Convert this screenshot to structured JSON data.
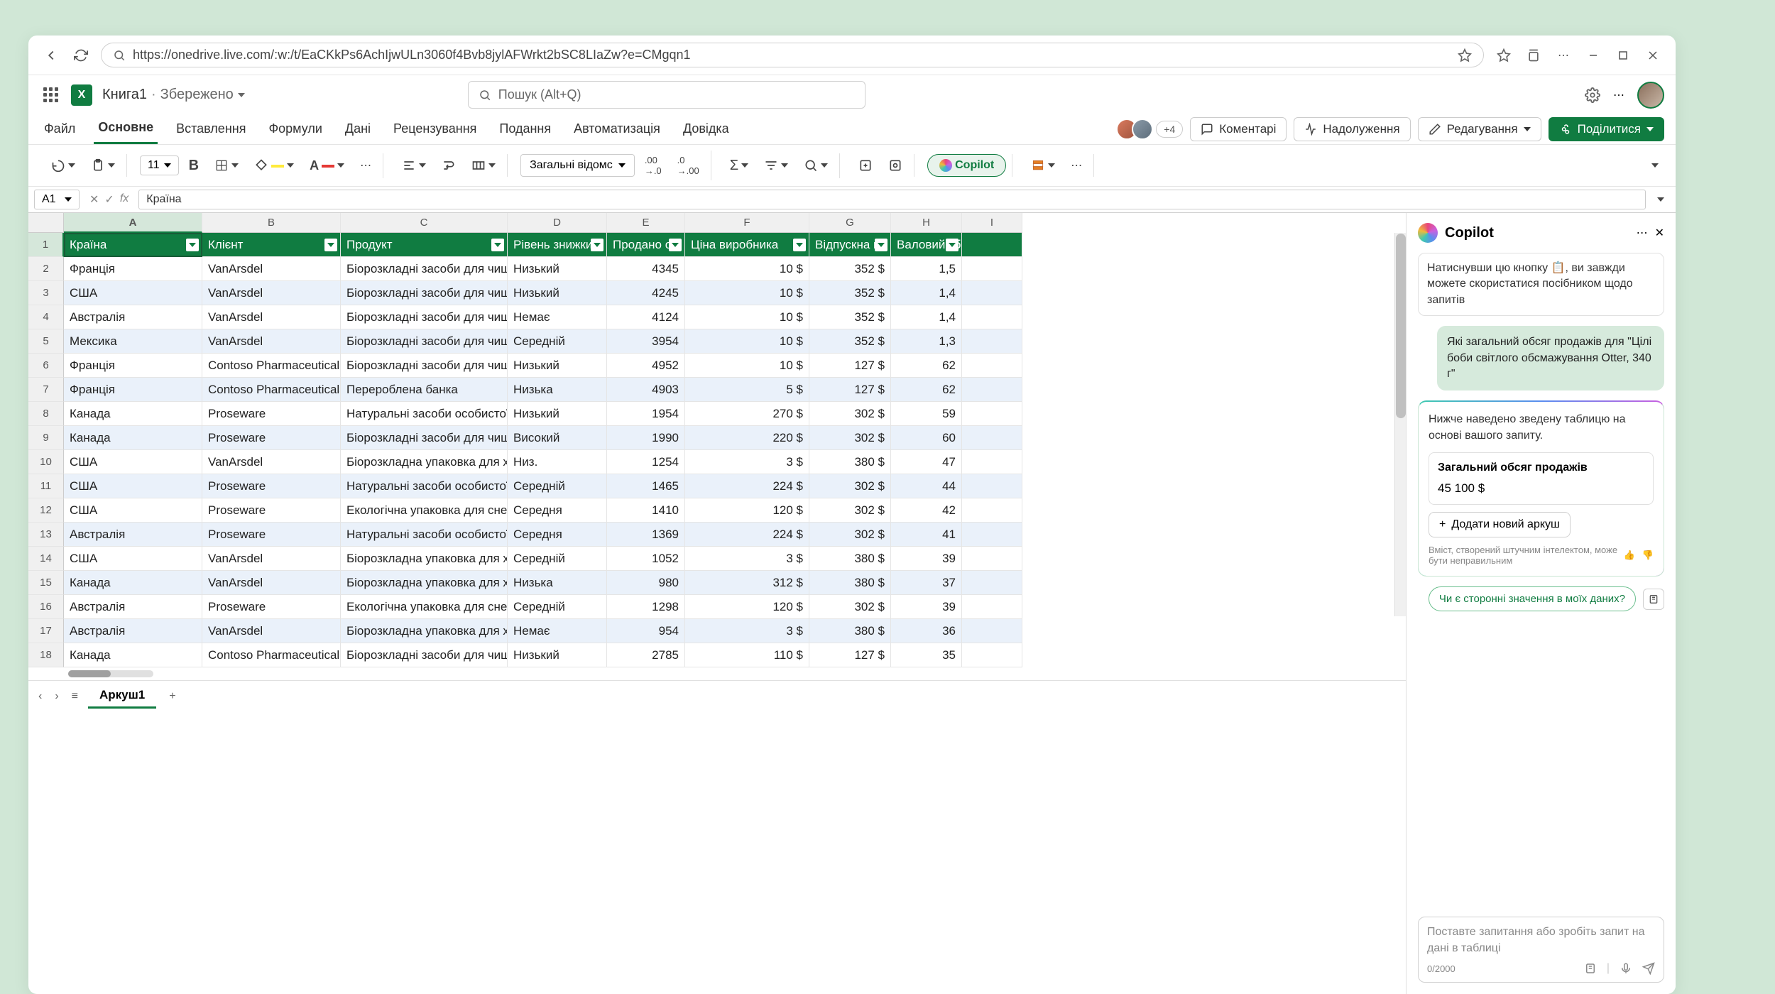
{
  "browser": {
    "url": "https://onedrive.live.com/:w:/t/EaCKkPs6AchIjwULn3060f4Bvb8jylAFWrkt2bSC8LIaZw?e=CMgqn1"
  },
  "doc": {
    "title": "Книга1",
    "status": "Збережено"
  },
  "search_placeholder": "Пошук (Alt+Q)",
  "tabs": {
    "file": "Файл",
    "home": "Основне",
    "insert": "Вставлення",
    "formulas": "Формули",
    "data": "Дані",
    "review": "Рецензування",
    "view": "Подання",
    "automate": "Автоматизація",
    "help": "Довідка"
  },
  "presence_more": "+4",
  "actions": {
    "comments": "Коментарі",
    "catchup": "Надолуження",
    "editing": "Редагування",
    "share": "Поділитися"
  },
  "toolbar": {
    "font_size": "11",
    "number_format": "Загальні відомс",
    "copilot": "Copilot"
  },
  "formula_bar": {
    "name_box": "A1",
    "formula": "Країна"
  },
  "columns": {
    "letters": [
      "A",
      "B",
      "C",
      "D",
      "E",
      "F",
      "G",
      "H",
      "I"
    ],
    "widths": [
      195,
      195,
      235,
      140,
      110,
      175,
      115,
      100,
      85
    ],
    "headers": [
      "Країна",
      "Клієнт",
      "Продукт",
      "Рівень знижки",
      "Продано од",
      "Ціна виробника",
      "Відпускна ц",
      "Валовий зб",
      ""
    ]
  },
  "rows": [
    {
      "c": [
        "Франція",
        "VanArsdel",
        "Біорозкладні засоби для чищенн",
        "Низький",
        "4345",
        "10 $",
        "352 $",
        "1,5",
        ""
      ]
    },
    {
      "c": [
        "США",
        "VanArsdel",
        "Біорозкладні засоби для чищенн",
        "Низький",
        "4245",
        "10 $",
        "352 $",
        "1,4",
        ""
      ]
    },
    {
      "c": [
        "Австралія",
        "VanArsdel",
        "Біорозкладні засоби для чищенн",
        "Немає",
        "4124",
        "10 $",
        "352 $",
        "1,4",
        ""
      ]
    },
    {
      "c": [
        "Мексика",
        "VanArsdel",
        "Біорозкладні засоби для чищенн",
        "Середній",
        "3954",
        "10 $",
        "352 $",
        "1,3",
        ""
      ]
    },
    {
      "c": [
        "Франція",
        "Contoso Pharmaceuticals",
        "Біорозкладні засоби для чищенн",
        "Низький",
        "4952",
        "10 $",
        "127 $",
        "62",
        ""
      ]
    },
    {
      "c": [
        "Франція",
        "Contoso Pharmaceuticals",
        "Перероблена банка",
        "Низька",
        "4903",
        "5 $",
        "127 $",
        "62",
        ""
      ]
    },
    {
      "c": [
        "Канада",
        "Proseware",
        "Натуральні засоби особистої гігіє",
        "Низький",
        "1954",
        "270 $",
        "302 $",
        "59",
        ""
      ]
    },
    {
      "c": [
        "Канада",
        "Proseware",
        "Біорозкладні засоби для чищенн",
        "Високий",
        "1990",
        "220 $",
        "302 $",
        "60",
        ""
      ]
    },
    {
      "c": [
        "США",
        "VanArsdel",
        "Біорозкладна упаковка для харчо",
        "Низ.",
        "1254",
        "3 $",
        "380 $",
        "47",
        ""
      ]
    },
    {
      "c": [
        "США",
        "Proseware",
        "Натуральні засоби особистої гігіє",
        "Середній",
        "1465",
        "224 $",
        "302 $",
        "44",
        ""
      ]
    },
    {
      "c": [
        "США",
        "Proseware",
        "Екологічна упаковка для снеків",
        "Середня",
        "1410",
        "120 $",
        "302 $",
        "42",
        ""
      ]
    },
    {
      "c": [
        "Австралія",
        "Proseware",
        "Натуральні засоби особистої гігіє",
        "Середня",
        "1369",
        "224 $",
        "302 $",
        "41",
        ""
      ]
    },
    {
      "c": [
        "США",
        "VanArsdel",
        "Біорозкладна упаковка для харчо",
        "Середній",
        "1052",
        "3 $",
        "380 $",
        "39",
        ""
      ]
    },
    {
      "c": [
        "Канада",
        "VanArsdel",
        "Біорозкладна упаковка для харчо",
        "Низька",
        "980",
        "312 $",
        "380 $",
        "37",
        ""
      ]
    },
    {
      "c": [
        "Австралія",
        "Proseware",
        "Екологічна упаковка для снеків",
        "Середній",
        "1298",
        "120 $",
        "302 $",
        "39",
        ""
      ]
    },
    {
      "c": [
        "Австралія",
        "VanArsdel",
        "Біорозкладна упаковка для харчо",
        "Немає",
        "954",
        "3 $",
        "380 $",
        "36",
        ""
      ]
    },
    {
      "c": [
        "Канада",
        "Contoso Pharmaceuticals",
        "Біорозкладні засоби для чищенн",
        "Низький",
        "2785",
        "110 $",
        "127 $",
        "35",
        ""
      ]
    }
  ],
  "sheet_tab": "Аркуш1",
  "copilot": {
    "title": "Copilot",
    "hint": "Натиснувши цю кнопку 📋, ви завжди можете скористатися посібником щодо запитів",
    "user_msg": "Які загальний обсяг продажів для \"Цілі боби світлого обсмажування Otter, 340 г\"",
    "resp_intro": "Нижче наведено зведену таблицю на основі вашого запиту.",
    "result_title": "Загальний обсяг продажів",
    "result_value": "45 100 $",
    "add_sheet_btn": "Додати новий аркуш",
    "disclaimer": "Вміст, створений штучним інтелектом, може бути неправильним",
    "suggestion": "Чи є сторонні значення в моїх даних?",
    "input_placeholder": "Поставте запитання або зробіть запит на дані в таблиці",
    "counter": "0/2000"
  },
  "colors": {
    "brand_green": "#107c41",
    "page_bg": "#d0e7d6",
    "table_header_bg": "#107c41",
    "stripe_bg": "#eaf1fa"
  }
}
